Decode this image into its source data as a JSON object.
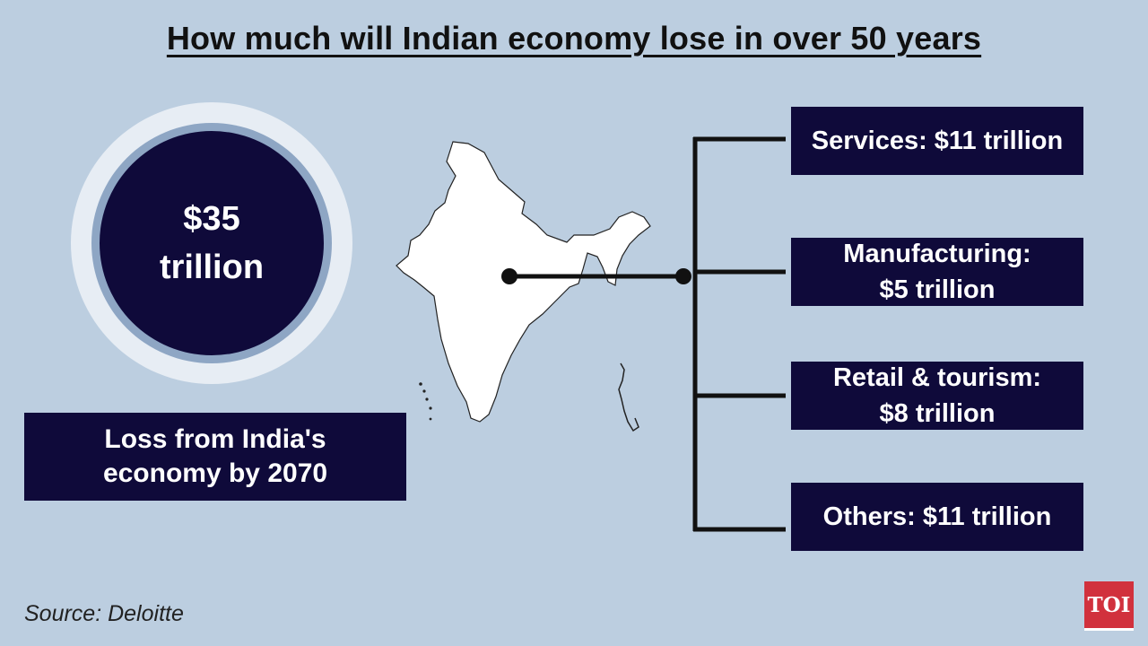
{
  "title": "How much will Indian economy lose in over 50 years",
  "total": {
    "line1": "$35",
    "line2": "trillion"
  },
  "caption": {
    "line1": "Loss from India's",
    "line2": "economy by 2070"
  },
  "sectors": [
    {
      "line1": "Services: $11 trillion",
      "line2": ""
    },
    {
      "line1": "Manufacturing:",
      "line2": "$5 trillion"
    },
    {
      "line1": "Retail & tourism:",
      "line2": "$8 trillion"
    },
    {
      "line1": "Others: $11 trillion",
      "line2": ""
    }
  ],
  "source": "Source: Deloitte",
  "logo": "TOI",
  "colors": {
    "background": "#bccee0",
    "navy": "#0f0a3a",
    "logo_red": "#d1313d"
  }
}
